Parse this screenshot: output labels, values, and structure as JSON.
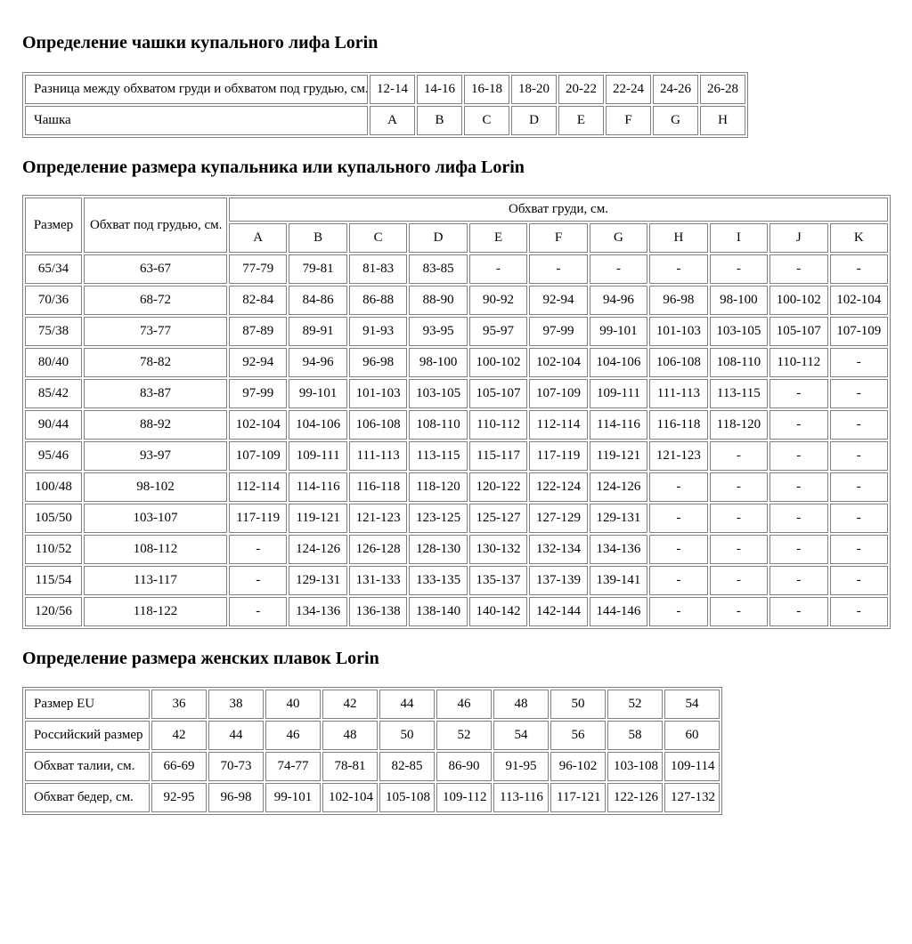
{
  "page": {
    "background": "#ffffff",
    "text_color": "#000000",
    "border_color": "#808080"
  },
  "section1": {
    "title": "Определение чашки купального лифа Lorin",
    "table": {
      "rows": [
        {
          "label": "Разница между обхватом груди и обхватом под грудью, см.",
          "values": [
            "12-14",
            "14-16",
            "16-18",
            "18-20",
            "20-22",
            "22-24",
            "24-26",
            "26-28"
          ]
        },
        {
          "label": "Чашка",
          "values": [
            "A",
            "B",
            "C",
            "D",
            "E",
            "F",
            "G",
            "H"
          ]
        }
      ]
    }
  },
  "section2": {
    "title": "Определение размера купальника или купального лифа Lorin",
    "table": {
      "col1_header": "Размер",
      "col2_header": "Обхват под грудью, см.",
      "group_header": "Обхват груди, см.",
      "cup_columns": [
        "A",
        "B",
        "C",
        "D",
        "E",
        "F",
        "G",
        "H",
        "I",
        "J",
        "K"
      ],
      "rows": [
        {
          "size": "65/34",
          "underbust": "63-67",
          "cups": [
            "77-79",
            "79-81",
            "81-83",
            "83-85",
            "-",
            "-",
            "-",
            "-",
            "-",
            "-",
            "-"
          ]
        },
        {
          "size": "70/36",
          "underbust": "68-72",
          "cups": [
            "82-84",
            "84-86",
            "86-88",
            "88-90",
            "90-92",
            "92-94",
            "94-96",
            "96-98",
            "98-100",
            "100-102",
            "102-104"
          ]
        },
        {
          "size": "75/38",
          "underbust": "73-77",
          "cups": [
            "87-89",
            "89-91",
            "91-93",
            "93-95",
            "95-97",
            "97-99",
            "99-101",
            "101-103",
            "103-105",
            "105-107",
            "107-109"
          ]
        },
        {
          "size": "80/40",
          "underbust": "78-82",
          "cups": [
            "92-94",
            "94-96",
            "96-98",
            "98-100",
            "100-102",
            "102-104",
            "104-106",
            "106-108",
            "108-110",
            "110-112",
            "-"
          ]
        },
        {
          "size": "85/42",
          "underbust": "83-87",
          "cups": [
            "97-99",
            "99-101",
            "101-103",
            "103-105",
            "105-107",
            "107-109",
            "109-111",
            "111-113",
            "113-115",
            "-",
            "-"
          ]
        },
        {
          "size": "90/44",
          "underbust": "88-92",
          "cups": [
            "102-104",
            "104-106",
            "106-108",
            "108-110",
            "110-112",
            "112-114",
            "114-116",
            "116-118",
            "118-120",
            "-",
            "-"
          ]
        },
        {
          "size": "95/46",
          "underbust": "93-97",
          "cups": [
            "107-109",
            "109-111",
            "111-113",
            "113-115",
            "115-117",
            "117-119",
            "119-121",
            "121-123",
            "-",
            "-",
            "-"
          ]
        },
        {
          "size": "100/48",
          "underbust": "98-102",
          "cups": [
            "112-114",
            "114-116",
            "116-118",
            "118-120",
            "120-122",
            "122-124",
            "124-126",
            "-",
            "-",
            "-",
            "-"
          ]
        },
        {
          "size": "105/50",
          "underbust": "103-107",
          "cups": [
            "117-119",
            "119-121",
            "121-123",
            "123-125",
            "125-127",
            "127-129",
            "129-131",
            "-",
            "-",
            "-",
            "-"
          ]
        },
        {
          "size": "110/52",
          "underbust": "108-112",
          "cups": [
            "-",
            "124-126",
            "126-128",
            "128-130",
            "130-132",
            "132-134",
            "134-136",
            "-",
            "-",
            "-",
            "-"
          ]
        },
        {
          "size": "115/54",
          "underbust": "113-117",
          "cups": [
            "-",
            "129-131",
            "131-133",
            "133-135",
            "135-137",
            "137-139",
            "139-141",
            "-",
            "-",
            "-",
            "-"
          ]
        },
        {
          "size": "120/56",
          "underbust": "118-122",
          "cups": [
            "-",
            "134-136",
            "136-138",
            "138-140",
            "140-142",
            "142-144",
            "144-146",
            "-",
            "-",
            "-",
            "-"
          ]
        }
      ]
    }
  },
  "section3": {
    "title": "Определение размера женских плавок Lorin",
    "table": {
      "rows": [
        {
          "label": "Размер EU",
          "values": [
            "36",
            "38",
            "40",
            "42",
            "44",
            "46",
            "48",
            "50",
            "52",
            "54"
          ]
        },
        {
          "label": "Российский размер",
          "values": [
            "42",
            "44",
            "46",
            "48",
            "50",
            "52",
            "54",
            "56",
            "58",
            "60"
          ]
        },
        {
          "label": "Обхват талии, см.",
          "values": [
            "66-69",
            "70-73",
            "74-77",
            "78-81",
            "82-85",
            "86-90",
            "91-95",
            "96-102",
            "103-108",
            "109-114"
          ]
        },
        {
          "label": "Обхват бедер, см.",
          "values": [
            "92-95",
            "96-98",
            "99-101",
            "102-104",
            "105-108",
            "109-112",
            "113-116",
            "117-121",
            "122-126",
            "127-132"
          ]
        }
      ]
    }
  }
}
